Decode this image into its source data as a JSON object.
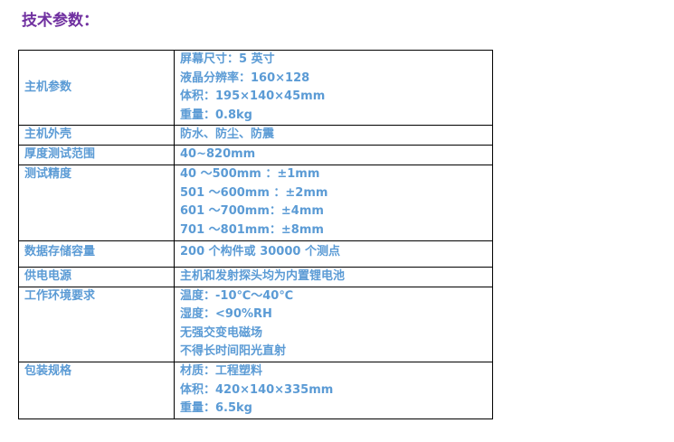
{
  "title": "技术参数：",
  "rows": [
    {
      "label": "主机参数",
      "values": [
        "屏幕尺寸：5 英寸",
        "液晶分辨率：160×128",
        "体积：195×140×45mm",
        "重量：0.8kg"
      ]
    },
    {
      "label": "主机外壳",
      "values": [
        "防水、防尘、防震"
      ]
    },
    {
      "label": "厚度测试范围",
      "values": [
        "40~820mm"
      ]
    },
    {
      "label": "测试精度",
      "values": [
        "40 ～500mm ：±1mm",
        "501 ～600mm ：±2mm",
        "601 ～700mm：±4mm",
        "701 ～801mm：±8mm"
      ]
    },
    {
      "label": "数据存储容量",
      "values": [
        "200 个构件或 30000 个测点"
      ]
    },
    {
      "label": "供电电源",
      "values": [
        "主机和发射探头均为内置锂电池"
      ]
    },
    {
      "label": "工作环境要求",
      "values": [
        "温度：-10℃～40℃",
        "湿度：<90%RH",
        "无强交变电磁场",
        "不得长时间阳光直射"
      ]
    },
    {
      "label": "包装规格",
      "values": [
        "材质：工程塑料",
        "体积：420×140×335mm",
        "重量：6.5kg"
      ]
    }
  ]
}
